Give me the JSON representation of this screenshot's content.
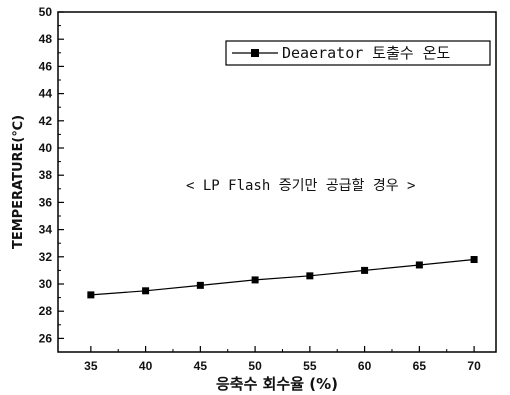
{
  "chart_data": {
    "type": "line",
    "xlabel": "응축수 회수율 (%)",
    "ylabel": "TEMPERATURE(℃)",
    "xlim": [
      32,
      72
    ],
    "ylim": [
      25,
      50
    ],
    "x_ticks": [
      35,
      40,
      45,
      50,
      55,
      60,
      65,
      70
    ],
    "y_ticks": [
      26,
      28,
      30,
      32,
      34,
      36,
      38,
      40,
      42,
      44,
      46,
      48,
      50
    ],
    "grid": false,
    "legend_position": "top-right",
    "series": [
      {
        "name": "Deaerator 토출수 온도",
        "marker": "square",
        "color": "#000000",
        "x": [
          35,
          40,
          45,
          50,
          55,
          60,
          65,
          70
        ],
        "y": [
          29.2,
          29.5,
          29.9,
          30.3,
          30.6,
          31.0,
          31.4,
          31.8
        ]
      }
    ],
    "annotations": [
      "< LP Flash 증기만 공급할 경우 >"
    ]
  }
}
